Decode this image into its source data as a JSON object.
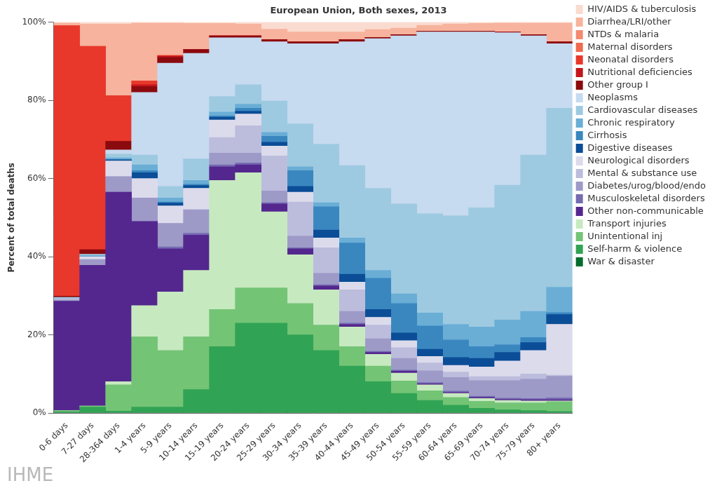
{
  "chart_data": {
    "type": "bar",
    "title": "European Union, Both sexes, 2013",
    "y_label": "Percent of total deaths",
    "annotations": [
      "IHME"
    ],
    "stacked": true,
    "grid": false,
    "legend": "right",
    "ylim": [
      0,
      100
    ],
    "yticks": [
      {
        "value": 0,
        "label": "0%"
      },
      {
        "value": 20,
        "label": "20%"
      },
      {
        "value": 40,
        "label": "40%"
      },
      {
        "value": 60,
        "label": "60%"
      },
      {
        "value": 80,
        "label": "80%"
      },
      {
        "value": 100,
        "label": "100%"
      }
    ],
    "categories": [
      "0-6 days",
      "7-27 days",
      "28-364 days",
      "1-4 years",
      "5-9 years",
      "10-14 years",
      "15-19 years",
      "20-24 years",
      "25-29 years",
      "30-34 years",
      "35-39 years",
      "40-44 years",
      "45-49 years",
      "50-54 years",
      "55-59 years",
      "60-64 years",
      "65-69 years",
      "70-74 years",
      "75-79 years",
      "80+ years"
    ],
    "series": [
      {
        "name": "HIV/AIDS & tuberculosis",
        "color": "#fadbd0",
        "values": [
          0.2,
          0.5,
          0.5,
          0.2,
          0.2,
          0.3,
          0.3,
          0.5,
          1.8,
          2.5,
          2.5,
          2.5,
          1.9,
          1.5,
          0.8,
          0.5,
          0.3,
          0.2,
          0.2,
          0.2
        ]
      },
      {
        "name": "Diarrhea/LRI/other",
        "color": "#f7b39d",
        "values": [
          0.7,
          5.7,
          18.3,
          14.8,
          8.3,
          6.7,
          3.2,
          3,
          2.7,
          2.5,
          2.5,
          2,
          2,
          1.7,
          1.5,
          1.8,
          2,
          2.3,
          3,
          4.8
        ]
      },
      {
        "name": "NTDs & malaria",
        "color": "#f48a70",
        "values": [
          0,
          0,
          0,
          0,
          0,
          0,
          0,
          0,
          0,
          0,
          0,
          0,
          0,
          0,
          0,
          0,
          0,
          0,
          0,
          0
        ]
      },
      {
        "name": "Maternal disorders",
        "color": "#ef6a4f",
        "values": [
          0,
          0,
          0,
          0,
          0,
          0,
          0,
          0,
          0,
          0,
          0,
          0,
          0,
          0,
          0,
          0,
          0,
          0,
          0,
          0
        ]
      },
      {
        "name": "Neonatal disorders",
        "color": "#e8382c",
        "values": [
          69.2,
          52,
          11.7,
          1,
          0.2,
          0,
          0,
          0,
          0,
          0,
          0,
          0,
          0,
          0,
          0,
          0,
          0,
          0,
          0,
          0
        ]
      },
      {
        "name": "Nutritional deficiencies",
        "color": "#c4151c",
        "values": [
          0,
          0,
          0,
          0.5,
          0.3,
          0,
          0,
          0,
          0,
          0,
          0,
          0,
          0,
          0,
          0,
          0,
          0,
          0,
          0,
          0
        ]
      },
      {
        "name": "Other group I",
        "color": "#8b0a0e",
        "values": [
          0.3,
          1.2,
          2.2,
          1.5,
          1.5,
          1,
          0.5,
          0.5,
          0.5,
          0.5,
          0.5,
          0.5,
          0.3,
          0.3,
          0.2,
          0.2,
          0.2,
          0.2,
          0.3,
          0.5
        ]
      },
      {
        "name": "Neoplasms",
        "color": "#c6daf0",
        "values": [
          0.1,
          0,
          1,
          16,
          31.5,
          27,
          15,
          12,
          15.2,
          20.5,
          25.7,
          31.7,
          38.3,
          43,
          46.5,
          47,
          45,
          39,
          30.5,
          16.5
        ]
      },
      {
        "name": "Cardiovascular diseases",
        "color": "#9ecae1",
        "values": [
          0.2,
          0.3,
          1,
          2.5,
          3,
          5.5,
          4,
          5,
          8,
          11,
          15,
          18.5,
          21,
          23,
          25.4,
          27.8,
          30.5,
          34.5,
          40,
          45.8
        ]
      },
      {
        "name": "Chronic respiratory",
        "color": "#6aaed6",
        "values": [
          0,
          0.3,
          0.5,
          1.5,
          1,
          1,
          1,
          1,
          1,
          1,
          1,
          1.3,
          2,
          2.5,
          3.3,
          4,
          5,
          6.3,
          6.7,
          6.5
        ]
      },
      {
        "name": "Cirrhosis",
        "color": "#3a87c0",
        "values": [
          0,
          0,
          0,
          0.5,
          0.3,
          0.3,
          0.3,
          0.8,
          1.5,
          4,
          6,
          8,
          8,
          7.5,
          6,
          4.5,
          3,
          2,
          1.3,
          0.5
        ]
      },
      {
        "name": "Digestive diseases",
        "color": "#0b4d96",
        "values": [
          0,
          0,
          0.3,
          1.5,
          0.7,
          0.7,
          0.7,
          0.7,
          1,
          1.5,
          2,
          2,
          2,
          2,
          1.8,
          2,
          2.2,
          2.2,
          2,
          2.5
        ]
      },
      {
        "name": "Neurological disorders",
        "color": "#dcdbec",
        "values": [
          0.3,
          0.7,
          4,
          5,
          4.5,
          5.5,
          4.5,
          3,
          2.5,
          2.5,
          2.5,
          2,
          2,
          1.8,
          1.7,
          1.7,
          2.5,
          4,
          6,
          13
        ]
      },
      {
        "name": "Mental & substance use",
        "color": "#bcbddc",
        "values": [
          0,
          0,
          0,
          0,
          0,
          0,
          4,
          7,
          9,
          8.7,
          6.5,
          5.5,
          3.5,
          2.7,
          2,
          1.4,
          1,
          1,
          1.3,
          0.3
        ]
      },
      {
        "name": "Diabetes/urog/blood/endo",
        "color": "#9e9ac8",
        "values": [
          0.4,
          1.5,
          4,
          6,
          6,
          6,
          3,
          2.5,
          3,
          3,
          3,
          3,
          3.2,
          3,
          3,
          3.5,
          4,
          4.5,
          5,
          5.5
        ]
      },
      {
        "name": "Musculoskeletal disorders",
        "color": "#756bb1",
        "values": [
          0,
          0,
          0,
          0,
          0.5,
          0.5,
          0.5,
          0.5,
          0.3,
          0.3,
          0.3,
          0.3,
          0.3,
          0.3,
          0.3,
          0.3,
          0.3,
          0.3,
          0.3,
          0.5
        ]
      },
      {
        "name": "Other non-communicable",
        "color": "#54278f",
        "values": [
          28,
          36,
          48.5,
          21.5,
          11,
          9,
          3.5,
          2,
          2,
          1.5,
          1,
          0.7,
          0.5,
          0.5,
          0.3,
          0.3,
          0.3,
          0.3,
          0.3,
          0.3
        ]
      },
      {
        "name": "Transport injuries",
        "color": "#c7e9c0",
        "values": [
          0,
          0,
          0.8,
          8,
          15,
          17,
          33,
          29.5,
          19.5,
          12.5,
          9,
          5,
          3,
          2,
          1.5,
          1,
          0.7,
          0.6,
          0.5,
          0.2
        ]
      },
      {
        "name": "Unintentional inj",
        "color": "#74c476",
        "values": [
          0.3,
          0.3,
          6.7,
          18,
          14.5,
          13.5,
          9.5,
          9,
          9,
          8,
          6.5,
          5,
          4,
          3.2,
          2.5,
          2,
          1.8,
          1.8,
          2,
          2.5
        ]
      },
      {
        "name": "Self-harm & violence",
        "color": "#31a354",
        "values": [
          0.3,
          1.5,
          0.5,
          1.5,
          1.5,
          6,
          17,
          23,
          23,
          20,
          16,
          12,
          8,
          5,
          3.2,
          2,
          1.2,
          0.8,
          0.6,
          0.4
        ]
      },
      {
        "name": "War & disaster",
        "color": "#006d2c",
        "values": [
          0,
          0,
          0,
          0,
          0,
          0,
          0,
          0,
          0,
          0,
          0,
          0,
          0,
          0,
          0,
          0,
          0,
          0,
          0,
          0
        ]
      }
    ]
  }
}
